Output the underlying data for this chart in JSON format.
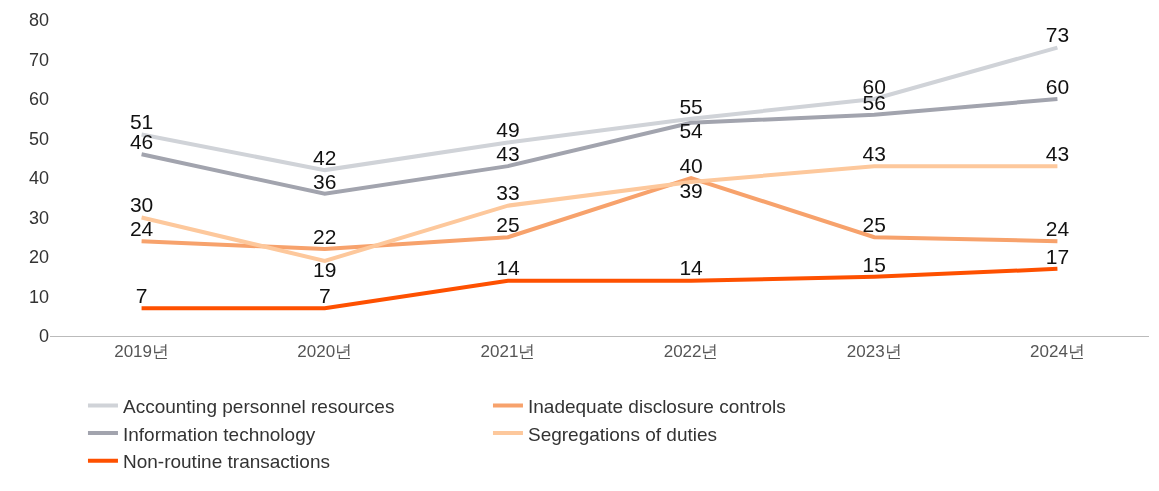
{
  "chart_data": {
    "type": "line",
    "categories": [
      "2019년",
      "2020년",
      "2021년",
      "2022년",
      "2023년",
      "2024년"
    ],
    "ylim": [
      0,
      80
    ],
    "yticks": [
      0,
      10,
      20,
      30,
      40,
      50,
      60,
      70,
      80
    ],
    "legend": "bottom",
    "data_labels": true,
    "marker": "none",
    "line_style": "solid",
    "series": [
      {
        "name": "Accounting personnel resources",
        "color": "#d0d3d8",
        "values": [
          51,
          42,
          49,
          55,
          60,
          73
        ]
      },
      {
        "name": "Inadequate disclosure controls",
        "color": "#f7a26c",
        "values": [
          24,
          22,
          25,
          40,
          25,
          24
        ]
      },
      {
        "name": "Information technology",
        "color": "#a2a4ae",
        "values": [
          46,
          36,
          43,
          54,
          56,
          60
        ]
      },
      {
        "name": "Segregations of duties",
        "color": "#fdc89c",
        "values": [
          30,
          19,
          33,
          39,
          43,
          43
        ]
      },
      {
        "name": "Non-routine transactions",
        "color": "#fe5000",
        "values": [
          7,
          7,
          14,
          14,
          15,
          17
        ]
      }
    ]
  }
}
